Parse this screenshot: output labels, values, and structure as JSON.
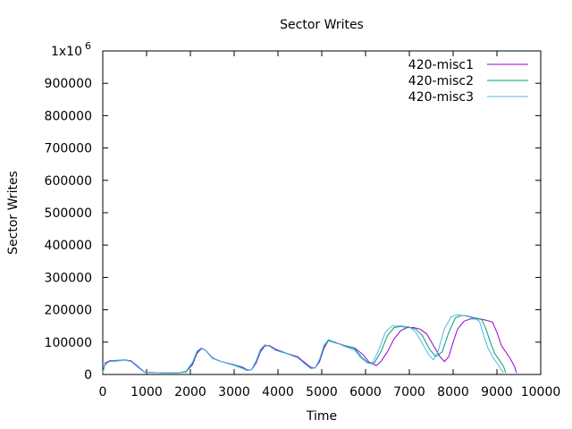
{
  "chart_data": {
    "type": "line",
    "title": "Sector Writes",
    "xlabel": "Time",
    "ylabel": "Sector Writes",
    "xlim": [
      0,
      10000
    ],
    "ylim": [
      0,
      1000000
    ],
    "x_ticks": [
      0,
      1000,
      2000,
      3000,
      4000,
      5000,
      6000,
      7000,
      8000,
      9000,
      10000
    ],
    "y_ticks": [
      {
        "value": 0,
        "label": "0"
      },
      {
        "value": 100000,
        "label": "100000"
      },
      {
        "value": 200000,
        "label": "200000"
      },
      {
        "value": 300000,
        "label": "300000"
      },
      {
        "value": 400000,
        "label": "400000"
      },
      {
        "value": 500000,
        "label": "500000"
      },
      {
        "value": 600000,
        "label": "600000"
      },
      {
        "value": 700000,
        "label": "700000"
      },
      {
        "value": 800000,
        "label": "800000"
      },
      {
        "value": 900000,
        "label": "900000"
      },
      {
        "value": 1000000,
        "label": "1x10",
        "superscript": "6"
      }
    ],
    "grid": false,
    "legend_position": "top-right",
    "series": [
      {
        "name": "420-misc1",
        "color": "#9400d3",
        "points": [
          [
            0,
            5000
          ],
          [
            50,
            35000
          ],
          [
            150,
            42000
          ],
          [
            300,
            43000
          ],
          [
            500,
            45000
          ],
          [
            650,
            42000
          ],
          [
            800,
            25000
          ],
          [
            950,
            8000
          ],
          [
            1100,
            6000
          ],
          [
            1400,
            5000
          ],
          [
            1700,
            5000
          ],
          [
            1900,
            8000
          ],
          [
            2050,
            30000
          ],
          [
            2150,
            65000
          ],
          [
            2250,
            80000
          ],
          [
            2350,
            75000
          ],
          [
            2500,
            52000
          ],
          [
            2700,
            40000
          ],
          [
            3000,
            30000
          ],
          [
            3200,
            22000
          ],
          [
            3300,
            14000
          ],
          [
            3400,
            15000
          ],
          [
            3500,
            35000
          ],
          [
            3600,
            70000
          ],
          [
            3700,
            88000
          ],
          [
            3800,
            90000
          ],
          [
            3950,
            78000
          ],
          [
            4200,
            65000
          ],
          [
            4450,
            55000
          ],
          [
            4600,
            38000
          ],
          [
            4750,
            22000
          ],
          [
            4850,
            20000
          ],
          [
            4950,
            40000
          ],
          [
            5050,
            80000
          ],
          [
            5150,
            105000
          ],
          [
            5300,
            100000
          ],
          [
            5500,
            90000
          ],
          [
            5750,
            82000
          ],
          [
            5950,
            60000
          ],
          [
            6100,
            35000
          ],
          [
            6250,
            28000
          ],
          [
            6350,
            40000
          ],
          [
            6500,
            70000
          ],
          [
            6650,
            110000
          ],
          [
            6800,
            135000
          ],
          [
            6950,
            145000
          ],
          [
            7100,
            145000
          ],
          [
            7250,
            140000
          ],
          [
            7400,
            125000
          ],
          [
            7550,
            90000
          ],
          [
            7700,
            55000
          ],
          [
            7800,
            40000
          ],
          [
            7900,
            55000
          ],
          [
            8000,
            100000
          ],
          [
            8100,
            140000
          ],
          [
            8250,
            165000
          ],
          [
            8400,
            172000
          ],
          [
            8600,
            172000
          ],
          [
            8750,
            168000
          ],
          [
            8900,
            162000
          ],
          [
            9000,
            130000
          ],
          [
            9100,
            90000
          ],
          [
            9200,
            70000
          ],
          [
            9300,
            50000
          ],
          [
            9400,
            25000
          ],
          [
            9450,
            5000
          ]
        ]
      },
      {
        "name": "420-misc2",
        "color": "#009e73",
        "points": [
          [
            0,
            5000
          ],
          [
            50,
            30000
          ],
          [
            150,
            40000
          ],
          [
            300,
            42000
          ],
          [
            500,
            45000
          ],
          [
            650,
            40000
          ],
          [
            800,
            22000
          ],
          [
            950,
            7000
          ],
          [
            1100,
            6000
          ],
          [
            1400,
            5000
          ],
          [
            1700,
            5000
          ],
          [
            1900,
            8000
          ],
          [
            2050,
            35000
          ],
          [
            2150,
            70000
          ],
          [
            2250,
            82000
          ],
          [
            2350,
            75000
          ],
          [
            2500,
            50000
          ],
          [
            2700,
            40000
          ],
          [
            3000,
            30000
          ],
          [
            3200,
            20000
          ],
          [
            3300,
            13000
          ],
          [
            3400,
            15000
          ],
          [
            3500,
            40000
          ],
          [
            3600,
            75000
          ],
          [
            3700,
            90000
          ],
          [
            3800,
            88000
          ],
          [
            3950,
            75000
          ],
          [
            4200,
            65000
          ],
          [
            4450,
            52000
          ],
          [
            4600,
            35000
          ],
          [
            4750,
            20000
          ],
          [
            4850,
            20000
          ],
          [
            4950,
            45000
          ],
          [
            5050,
            85000
          ],
          [
            5150,
            105000
          ],
          [
            5300,
            98000
          ],
          [
            5500,
            90000
          ],
          [
            5750,
            80000
          ],
          [
            5900,
            55000
          ],
          [
            6050,
            38000
          ],
          [
            6200,
            35000
          ],
          [
            6350,
            70000
          ],
          [
            6500,
            120000
          ],
          [
            6650,
            145000
          ],
          [
            6800,
            148000
          ],
          [
            7000,
            145000
          ],
          [
            7150,
            140000
          ],
          [
            7300,
            120000
          ],
          [
            7450,
            80000
          ],
          [
            7600,
            55000
          ],
          [
            7750,
            70000
          ],
          [
            7900,
            130000
          ],
          [
            8050,
            175000
          ],
          [
            8200,
            183000
          ],
          [
            8350,
            180000
          ],
          [
            8500,
            175000
          ],
          [
            8650,
            170000
          ],
          [
            8750,
            140000
          ],
          [
            8850,
            100000
          ],
          [
            8950,
            65000
          ],
          [
            9050,
            45000
          ],
          [
            9150,
            25000
          ],
          [
            9200,
            5000
          ]
        ]
      },
      {
        "name": "420-misc3",
        "color": "#56b4e9",
        "points": [
          [
            0,
            5000
          ],
          [
            50,
            32000
          ],
          [
            150,
            40000
          ],
          [
            300,
            41000
          ],
          [
            500,
            44000
          ],
          [
            650,
            40000
          ],
          [
            800,
            23000
          ],
          [
            950,
            7000
          ],
          [
            1100,
            6000
          ],
          [
            1400,
            5000
          ],
          [
            1700,
            5000
          ],
          [
            1900,
            10000
          ],
          [
            2050,
            38000
          ],
          [
            2150,
            72000
          ],
          [
            2250,
            82000
          ],
          [
            2350,
            74000
          ],
          [
            2500,
            50000
          ],
          [
            2700,
            40000
          ],
          [
            3000,
            28000
          ],
          [
            3200,
            18000
          ],
          [
            3300,
            12000
          ],
          [
            3400,
            16000
          ],
          [
            3500,
            42000
          ],
          [
            3600,
            78000
          ],
          [
            3700,
            92000
          ],
          [
            3800,
            88000
          ],
          [
            3950,
            74000
          ],
          [
            4200,
            64000
          ],
          [
            4450,
            52000
          ],
          [
            4600,
            34000
          ],
          [
            4750,
            18000
          ],
          [
            4850,
            20000
          ],
          [
            4950,
            48000
          ],
          [
            5050,
            90000
          ],
          [
            5150,
            108000
          ],
          [
            5300,
            100000
          ],
          [
            5500,
            88000
          ],
          [
            5750,
            75000
          ],
          [
            5900,
            50000
          ],
          [
            6050,
            35000
          ],
          [
            6150,
            33000
          ],
          [
            6300,
            75000
          ],
          [
            6450,
            130000
          ],
          [
            6600,
            150000
          ],
          [
            6800,
            150000
          ],
          [
            7000,
            147000
          ],
          [
            7150,
            130000
          ],
          [
            7300,
            95000
          ],
          [
            7450,
            60000
          ],
          [
            7550,
            45000
          ],
          [
            7650,
            70000
          ],
          [
            7800,
            140000
          ],
          [
            7950,
            178000
          ],
          [
            8100,
            185000
          ],
          [
            8300,
            180000
          ],
          [
            8450,
            175000
          ],
          [
            8600,
            165000
          ],
          [
            8700,
            120000
          ],
          [
            8800,
            80000
          ],
          [
            8900,
            55000
          ],
          [
            9000,
            35000
          ],
          [
            9100,
            15000
          ],
          [
            9150,
            5000
          ]
        ]
      }
    ]
  }
}
